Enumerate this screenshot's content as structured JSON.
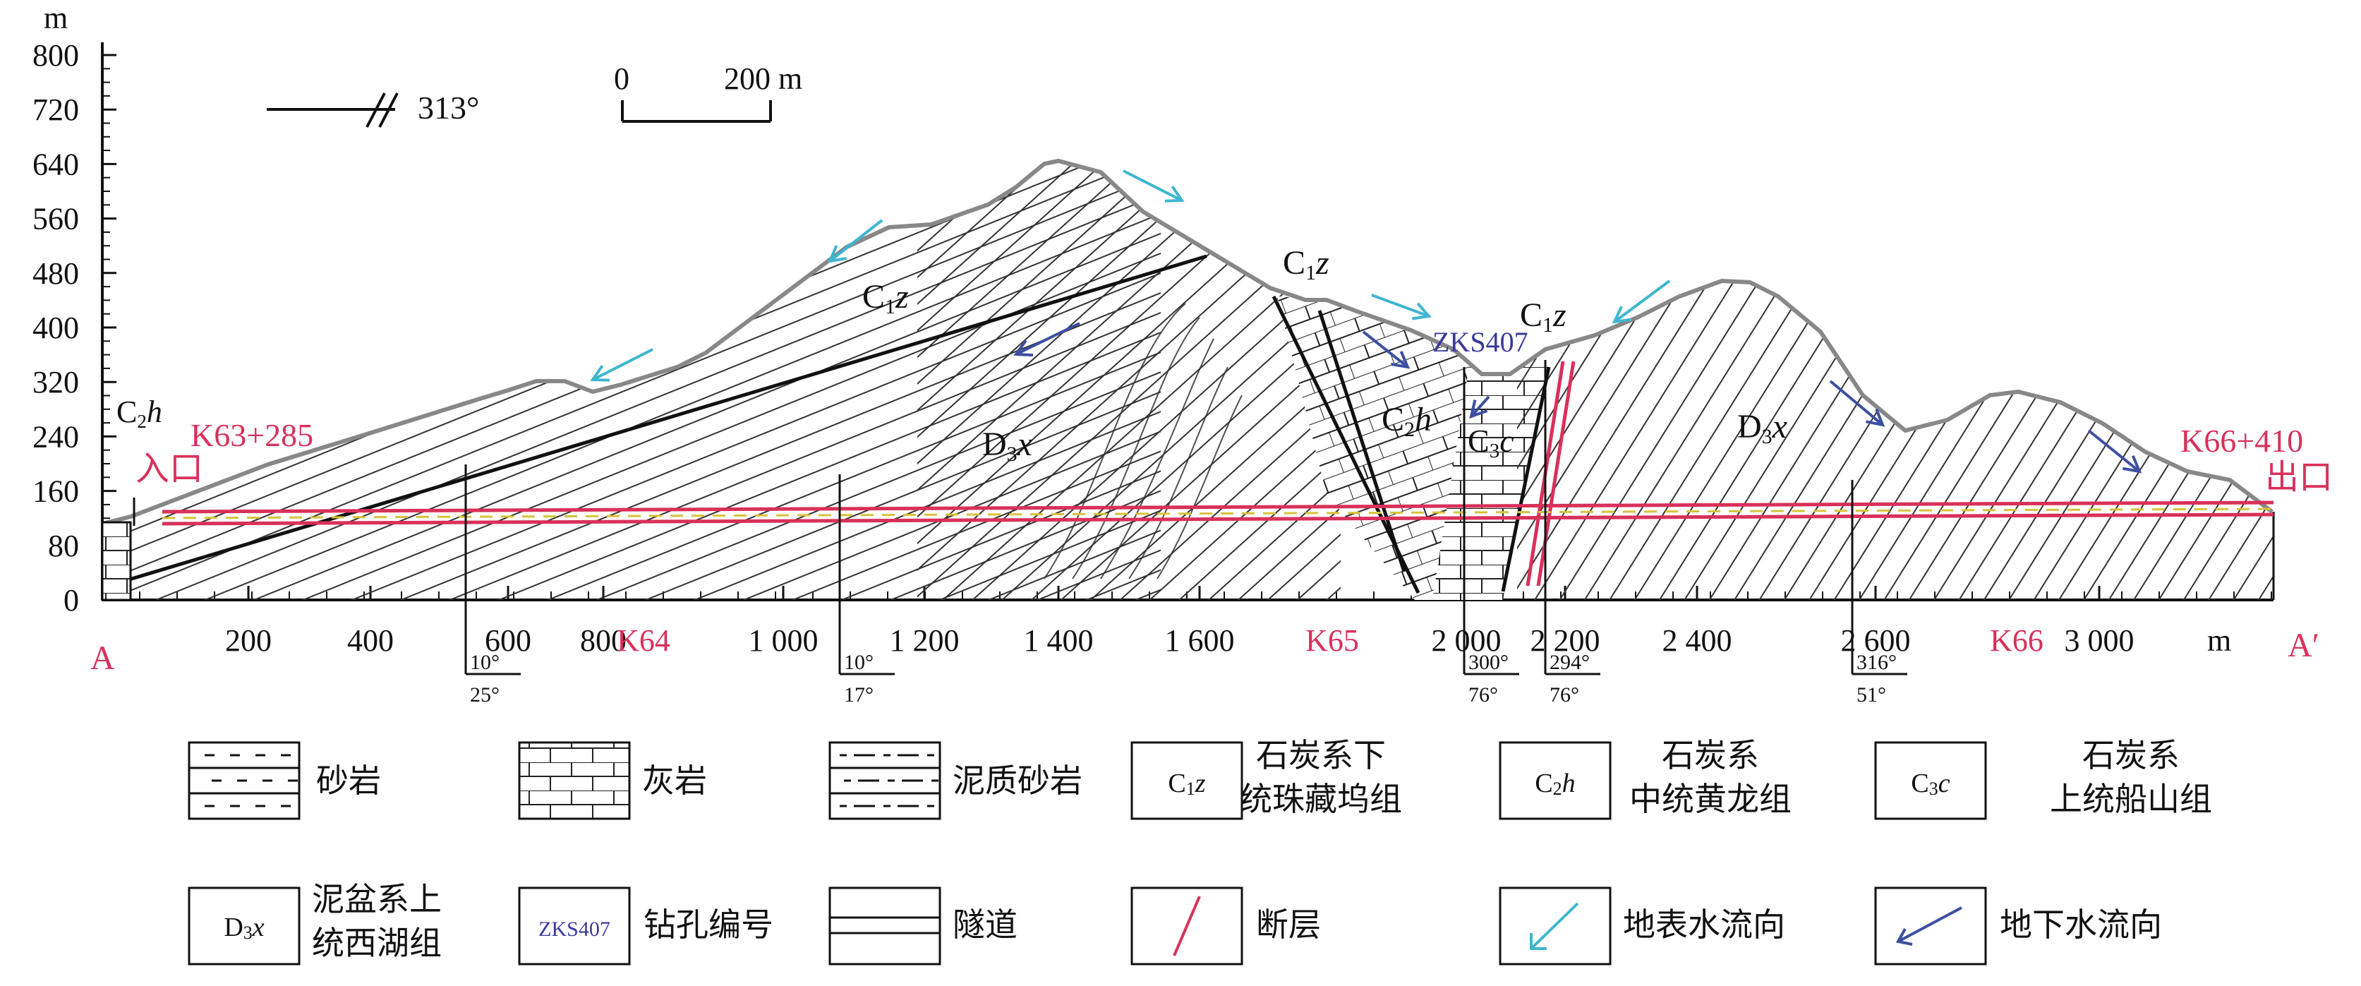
{
  "section": {
    "unit_y": "m",
    "y_ticks": [
      "800",
      "720",
      "640",
      "560",
      "480",
      "400",
      "320",
      "240",
      "160",
      "80",
      "0"
    ],
    "x_ticks": [
      "200",
      "400",
      "600",
      "800",
      "1 000",
      "1 200",
      "1 400",
      "1 600",
      "2 000",
      "2 200",
      "2 400",
      "2 600",
      "3 000"
    ],
    "x_unit": "m",
    "red_marks": [
      "K64",
      "K65",
      "K66"
    ],
    "end_left": "A",
    "end_right": "A′",
    "bearing": "313°",
    "scale_start": "0",
    "scale_end": "200 m",
    "entrance_chainage": "K63+285",
    "entrance_label": "入口",
    "exit_chainage": "K66+410",
    "exit_label": "出口",
    "borehole": "ZKS407",
    "dip_marks": [
      {
        "top": "10°",
        "bottom": "25°"
      },
      {
        "top": "10°",
        "bottom": "17°"
      },
      {
        "top": "300°",
        "bottom": "76°"
      },
      {
        "top": "294°",
        "bottom": "76°"
      },
      {
        "top": "316°",
        "bottom": "51°"
      }
    ],
    "units": {
      "c1z": {
        "main": "C",
        "sub": "1",
        "it": "z"
      },
      "c2h": {
        "main": "C",
        "sub": "2",
        "it": "h"
      },
      "c3c": {
        "main": "C",
        "sub": "3",
        "it": "c"
      },
      "d3x": {
        "main": "D",
        "sub": "3",
        "it": "x"
      }
    }
  },
  "legend": {
    "sandstone": "砂岩",
    "limestone": "灰岩",
    "muddy_sandstone": "泥质砂岩",
    "c1z_code": "C1z",
    "c1z_name_1": "石炭系下",
    "c1z_name_2": "统珠藏坞组",
    "c2h_code": "C2h",
    "c2h_name_1": "石炭系",
    "c2h_name_2": "中统黄龙组",
    "c3c_code": "C3c",
    "c3c_name_1": "石炭系",
    "c3c_name_2": "上统船山组",
    "d3x_code": "D3x",
    "d3x_name_1": "泥盆系上",
    "d3x_name_2": "统西湖组",
    "borehole_code": "ZKS407",
    "borehole_name": "钻孔编号",
    "tunnel": "隧道",
    "fault": "断层",
    "surface_water": "地表水流向",
    "ground_water": "地下水流向"
  },
  "colors": {
    "accent_red": "#d8315b",
    "surface_arrow": "#3fb6cf",
    "ground_arrow": "#3d4fa0",
    "borehole_text": "#3a3a9a"
  }
}
